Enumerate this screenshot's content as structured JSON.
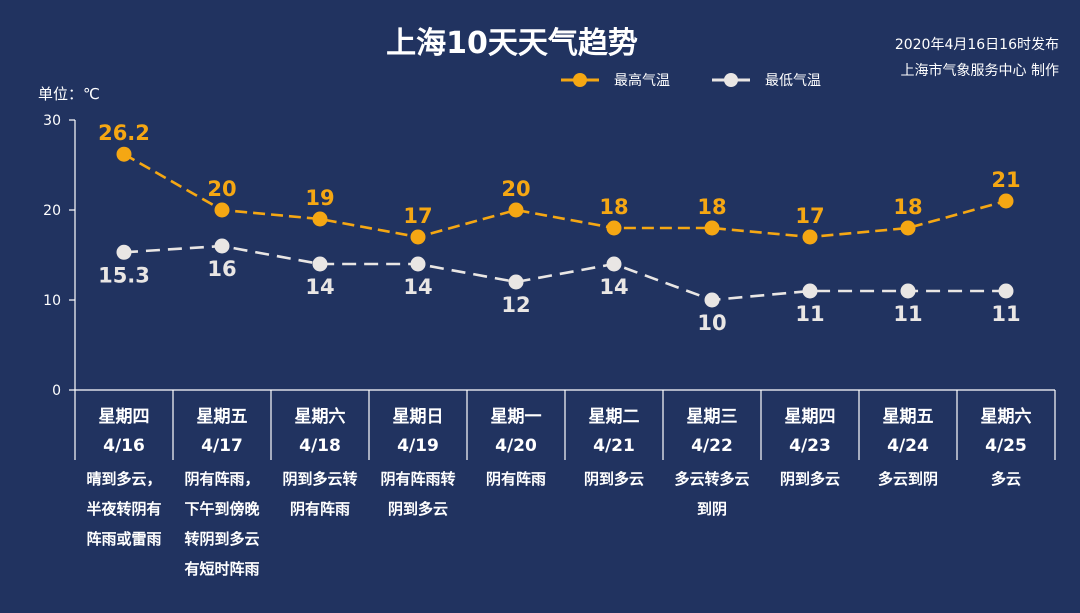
{
  "chart_data": {
    "type": "line",
    "title": "上海10天天气趋势",
    "publish_time": "2020年4月16日16时发布",
    "publisher": "上海市气象服务中心 制作",
    "unit_label": "单位：℃",
    "ylim": [
      0,
      30
    ],
    "yticks": [
      "0",
      "10",
      "20",
      "30"
    ],
    "legend_position": "top-right",
    "weekdays": [
      "星期四",
      "星期五",
      "星期六",
      "星期日",
      "星期一",
      "星期二",
      "星期三",
      "星期四",
      "星期五",
      "星期六"
    ],
    "dates": [
      "4/16",
      "4/17",
      "4/18",
      "4/19",
      "4/20",
      "4/21",
      "4/22",
      "4/23",
      "4/24",
      "4/25"
    ],
    "weather": [
      [
        "晴到多云，",
        "半夜转阴有",
        "阵雨或雷雨"
      ],
      [
        "阴有阵雨，",
        "下午到傍晚",
        "转阴到多云",
        "有短时阵雨"
      ],
      [
        "阴到多云转",
        "阴有阵雨"
      ],
      [
        "阴有阵雨转",
        "阴到多云"
      ],
      [
        "阴有阵雨"
      ],
      [
        "阴到多云"
      ],
      [
        "多云转多云",
        "到阴"
      ],
      [
        "阴到多云"
      ],
      [
        "多云到阴"
      ],
      [
        "多云"
      ]
    ],
    "series": [
      {
        "name": "最高气温",
        "color": "#f5a713",
        "values": [
          26.2,
          20,
          19,
          17,
          20,
          18,
          18,
          17,
          18,
          21
        ],
        "labels": [
          "26.2",
          "20",
          "19",
          "17",
          "20",
          "18",
          "18",
          "17",
          "18",
          "21"
        ]
      },
      {
        "name": "最低气温",
        "color": "#e9e6e4",
        "values": [
          15.3,
          16,
          14,
          14,
          12,
          14,
          10,
          11,
          11,
          11
        ],
        "labels": [
          "15.3",
          "16",
          "14",
          "14",
          "12",
          "14",
          "10",
          "11",
          "11",
          "11"
        ]
      }
    ]
  }
}
